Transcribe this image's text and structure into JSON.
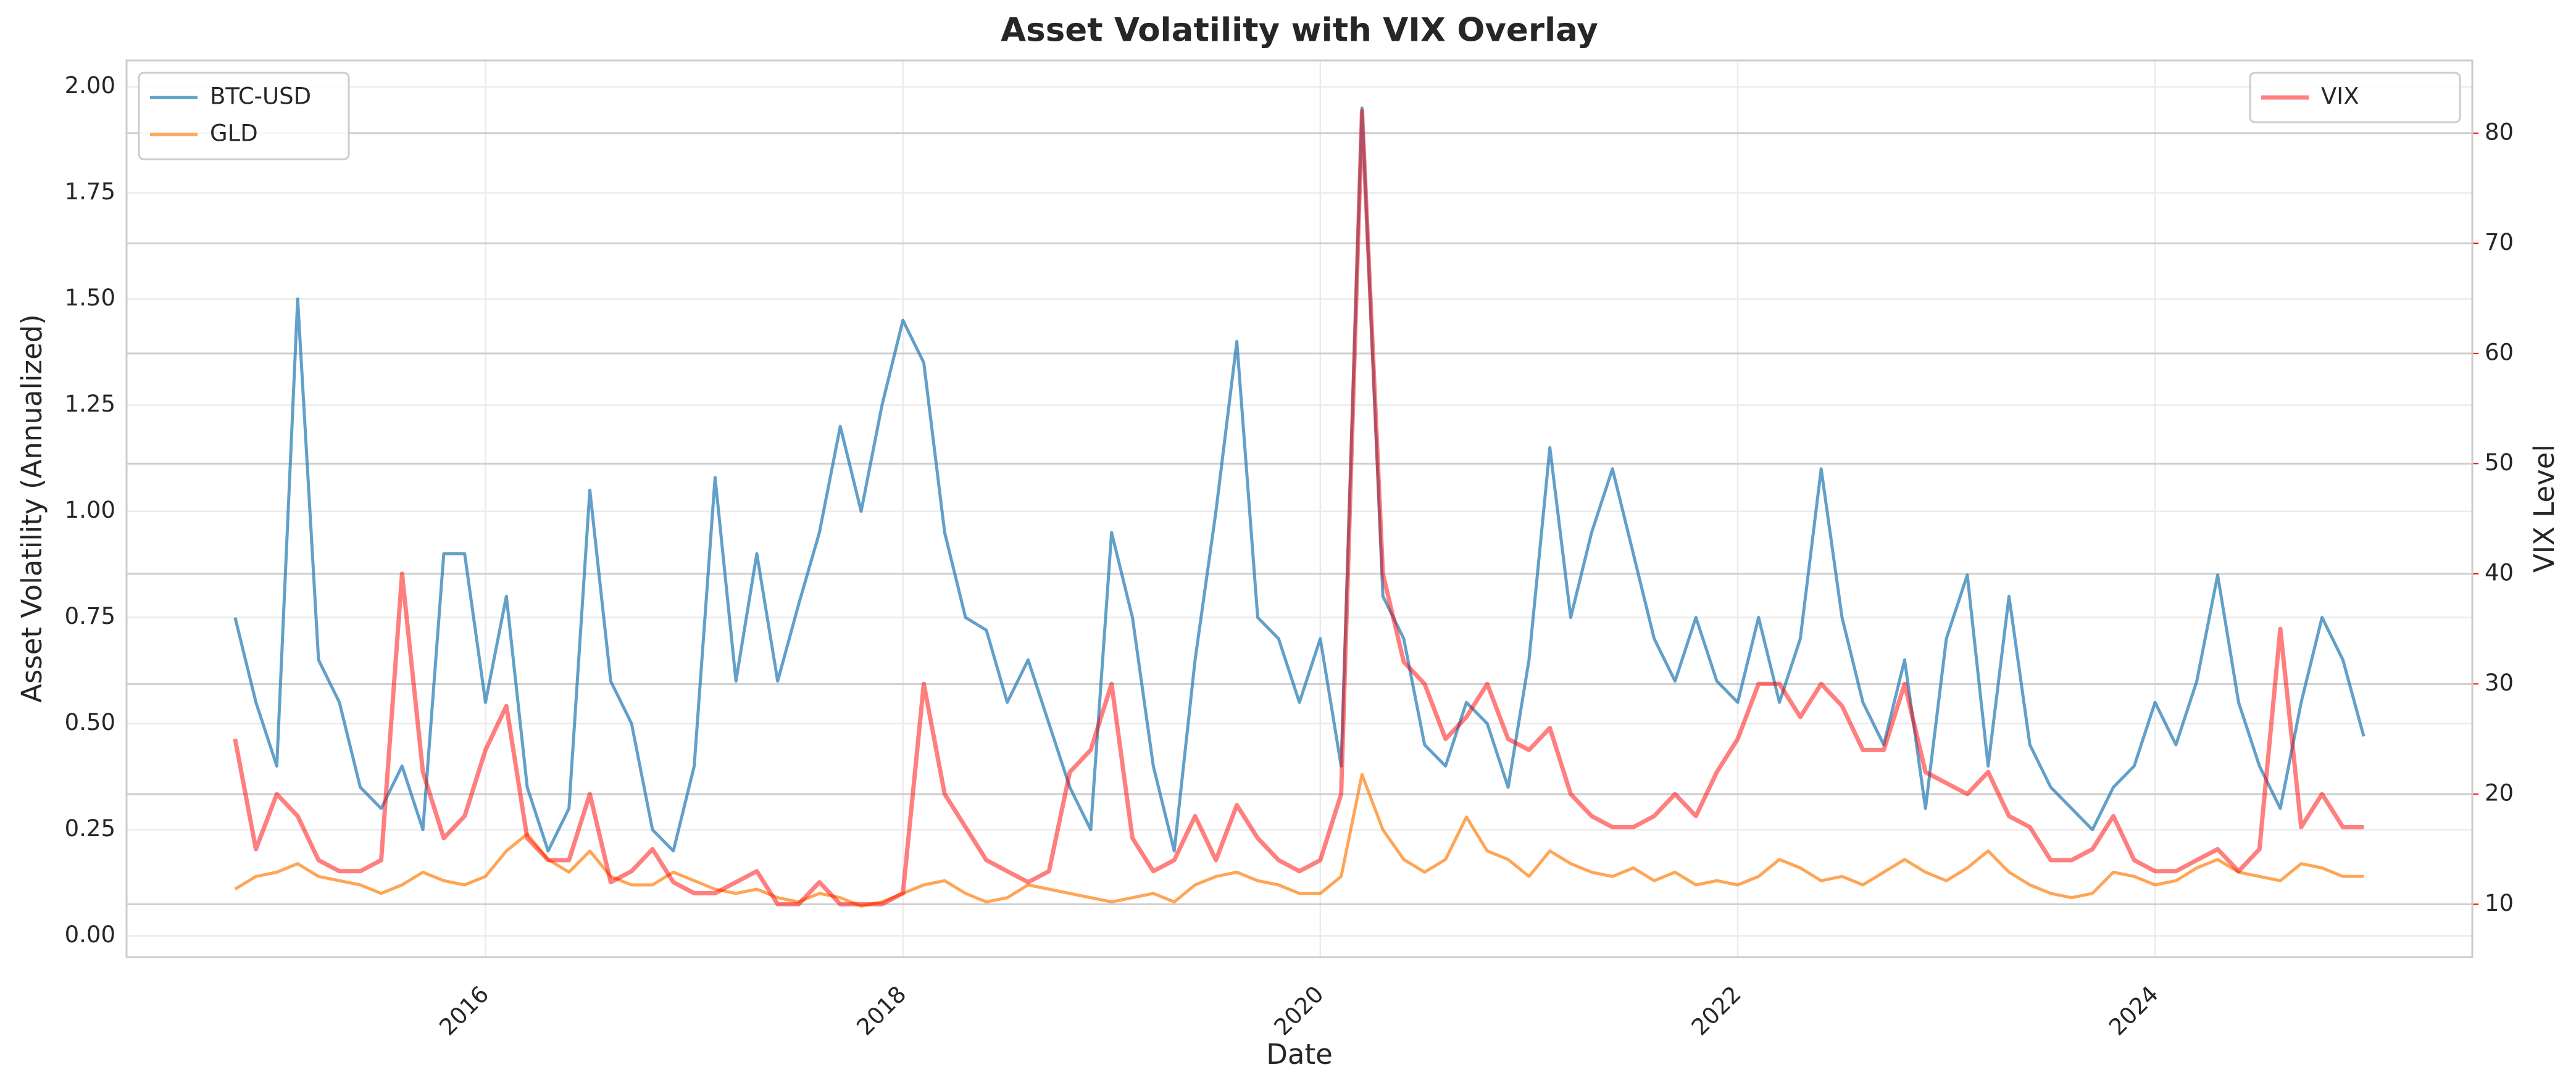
{
  "chart_data": {
    "type": "line",
    "title": "Asset Volatility with VIX Overlay",
    "xlabel": "Date",
    "ylabel": "Asset Volatility (Annualized)",
    "y2label": "VIX Level",
    "y2color": "#ff0000",
    "x": [
      2014.8,
      2014.9,
      2015.0,
      2015.1,
      2015.2,
      2015.3,
      2015.4,
      2015.5,
      2015.6,
      2015.7,
      2015.8,
      2015.9,
      2016.0,
      2016.1,
      2016.2,
      2016.3,
      2016.4,
      2016.5,
      2016.6,
      2016.7,
      2016.8,
      2016.9,
      2017.0,
      2017.1,
      2017.2,
      2017.3,
      2017.4,
      2017.5,
      2017.6,
      2017.7,
      2017.8,
      2017.9,
      2018.0,
      2018.1,
      2018.2,
      2018.3,
      2018.4,
      2018.5,
      2018.6,
      2018.7,
      2018.8,
      2018.9,
      2019.0,
      2019.1,
      2019.2,
      2019.3,
      2019.4,
      2019.5,
      2019.6,
      2019.7,
      2019.8,
      2019.9,
      2020.0,
      2020.1,
      2020.2,
      2020.3,
      2020.4,
      2020.5,
      2020.6,
      2020.7,
      2020.8,
      2020.9,
      2021.0,
      2021.1,
      2021.2,
      2021.3,
      2021.4,
      2021.5,
      2021.6,
      2021.7,
      2021.8,
      2021.9,
      2022.0,
      2022.1,
      2022.2,
      2022.3,
      2022.4,
      2022.5,
      2022.6,
      2022.7,
      2022.8,
      2022.9,
      2023.0,
      2023.1,
      2023.2,
      2023.3,
      2023.4,
      2023.5,
      2023.6,
      2023.7,
      2023.8,
      2023.9,
      2024.0,
      2024.1,
      2024.2,
      2024.3,
      2024.4,
      2024.5,
      2024.6,
      2024.7,
      2024.8,
      2024.9,
      2025.0
    ],
    "series": [
      {
        "name": "BTC-USD",
        "color": "#1f77b4",
        "axis": "y",
        "values": [
          0.75,
          0.55,
          0.4,
          1.5,
          0.65,
          0.55,
          0.35,
          0.3,
          0.4,
          0.25,
          0.9,
          0.9,
          0.55,
          0.8,
          0.35,
          0.2,
          0.3,
          1.05,
          0.6,
          0.5,
          0.25,
          0.2,
          0.4,
          1.08,
          0.6,
          0.9,
          0.6,
          0.78,
          0.95,
          1.2,
          1.0,
          1.25,
          1.45,
          1.35,
          0.95,
          0.75,
          0.72,
          0.55,
          0.65,
          0.5,
          0.35,
          0.25,
          0.95,
          0.75,
          0.4,
          0.2,
          0.65,
          1.0,
          1.4,
          0.75,
          0.7,
          0.55,
          0.7,
          0.4,
          1.95,
          0.8,
          0.7,
          0.45,
          0.4,
          0.55,
          0.5,
          0.35,
          0.65,
          1.15,
          0.75,
          0.95,
          1.1,
          0.9,
          0.7,
          0.6,
          0.75,
          0.6,
          0.55,
          0.75,
          0.55,
          0.7,
          1.1,
          0.75,
          0.55,
          0.45,
          0.65,
          0.3,
          0.7,
          0.85,
          0.4,
          0.8,
          0.45,
          0.35,
          0.3,
          0.25,
          0.35,
          0.4,
          0.55,
          0.45,
          0.6,
          0.85,
          0.55,
          0.4,
          0.3,
          0.55,
          0.75,
          0.65,
          0.47
        ]
      },
      {
        "name": "GLD",
        "color": "#ff7f0e",
        "axis": "y",
        "values": [
          0.11,
          0.14,
          0.15,
          0.17,
          0.14,
          0.13,
          0.12,
          0.1,
          0.12,
          0.15,
          0.13,
          0.12,
          0.14,
          0.2,
          0.24,
          0.18,
          0.15,
          0.2,
          0.14,
          0.12,
          0.12,
          0.15,
          0.13,
          0.11,
          0.1,
          0.11,
          0.09,
          0.08,
          0.1,
          0.09,
          0.07,
          0.08,
          0.1,
          0.12,
          0.13,
          0.1,
          0.08,
          0.09,
          0.12,
          0.11,
          0.1,
          0.09,
          0.08,
          0.09,
          0.1,
          0.08,
          0.12,
          0.14,
          0.15,
          0.13,
          0.12,
          0.1,
          0.1,
          0.14,
          0.38,
          0.25,
          0.18,
          0.15,
          0.18,
          0.28,
          0.2,
          0.18,
          0.14,
          0.2,
          0.17,
          0.15,
          0.14,
          0.16,
          0.13,
          0.15,
          0.12,
          0.13,
          0.12,
          0.14,
          0.18,
          0.16,
          0.13,
          0.14,
          0.12,
          0.15,
          0.18,
          0.15,
          0.13,
          0.16,
          0.2,
          0.15,
          0.12,
          0.1,
          0.09,
          0.1,
          0.15,
          0.14,
          0.12,
          0.13,
          0.16,
          0.18,
          0.15,
          0.14,
          0.13,
          0.17,
          0.16,
          0.14,
          0.14
        ]
      },
      {
        "name": "VIX",
        "color": "#ff0000",
        "axis": "y2",
        "values": [
          25,
          15,
          20,
          18,
          14,
          13,
          13,
          14,
          40,
          22,
          16,
          18,
          24,
          28,
          16,
          14,
          14,
          20,
          12,
          13,
          15,
          12,
          11,
          11,
          12,
          13,
          10,
          10,
          12,
          10,
          10,
          10,
          11,
          30,
          20,
          17,
          14,
          13,
          12,
          13,
          22,
          24,
          30,
          16,
          13,
          14,
          18,
          14,
          19,
          16,
          14,
          13,
          14,
          20,
          82,
          40,
          32,
          30,
          25,
          27,
          30,
          25,
          24,
          26,
          20,
          18,
          17,
          17,
          18,
          20,
          18,
          22,
          25,
          30,
          30,
          27,
          30,
          28,
          24,
          24,
          30,
          22,
          21,
          20,
          22,
          18,
          17,
          14,
          14,
          15,
          18,
          14,
          13,
          13,
          14,
          15,
          13,
          15,
          35,
          17,
          20,
          17,
          17
        ]
      }
    ],
    "xlim": [
      2014.28,
      2025.52
    ],
    "xticks": [
      2016,
      2018,
      2020,
      2022,
      2024
    ],
    "ylim": [
      -0.05,
      2.062
    ],
    "yticks": [
      {
        "value": 0,
        "label": "0.00"
      },
      {
        "value": 0.25,
        "label": "0.25"
      },
      {
        "value": 0.5,
        "label": "0.50"
      },
      {
        "value": 0.75,
        "label": "0.75"
      },
      {
        "value": 1,
        "label": "1.00"
      },
      {
        "value": 1.25,
        "label": "1.25"
      },
      {
        "value": 1.5,
        "label": "1.50"
      },
      {
        "value": 1.75,
        "label": "1.75"
      },
      {
        "value": 2,
        "label": "2.00"
      }
    ],
    "y2lim": [
      5.2,
      86.6
    ],
    "y2ticks": [
      10,
      20,
      30,
      40,
      50,
      60,
      70,
      80
    ],
    "grid": true,
    "legend": {
      "y": "upper left",
      "y2": "upper right"
    }
  }
}
